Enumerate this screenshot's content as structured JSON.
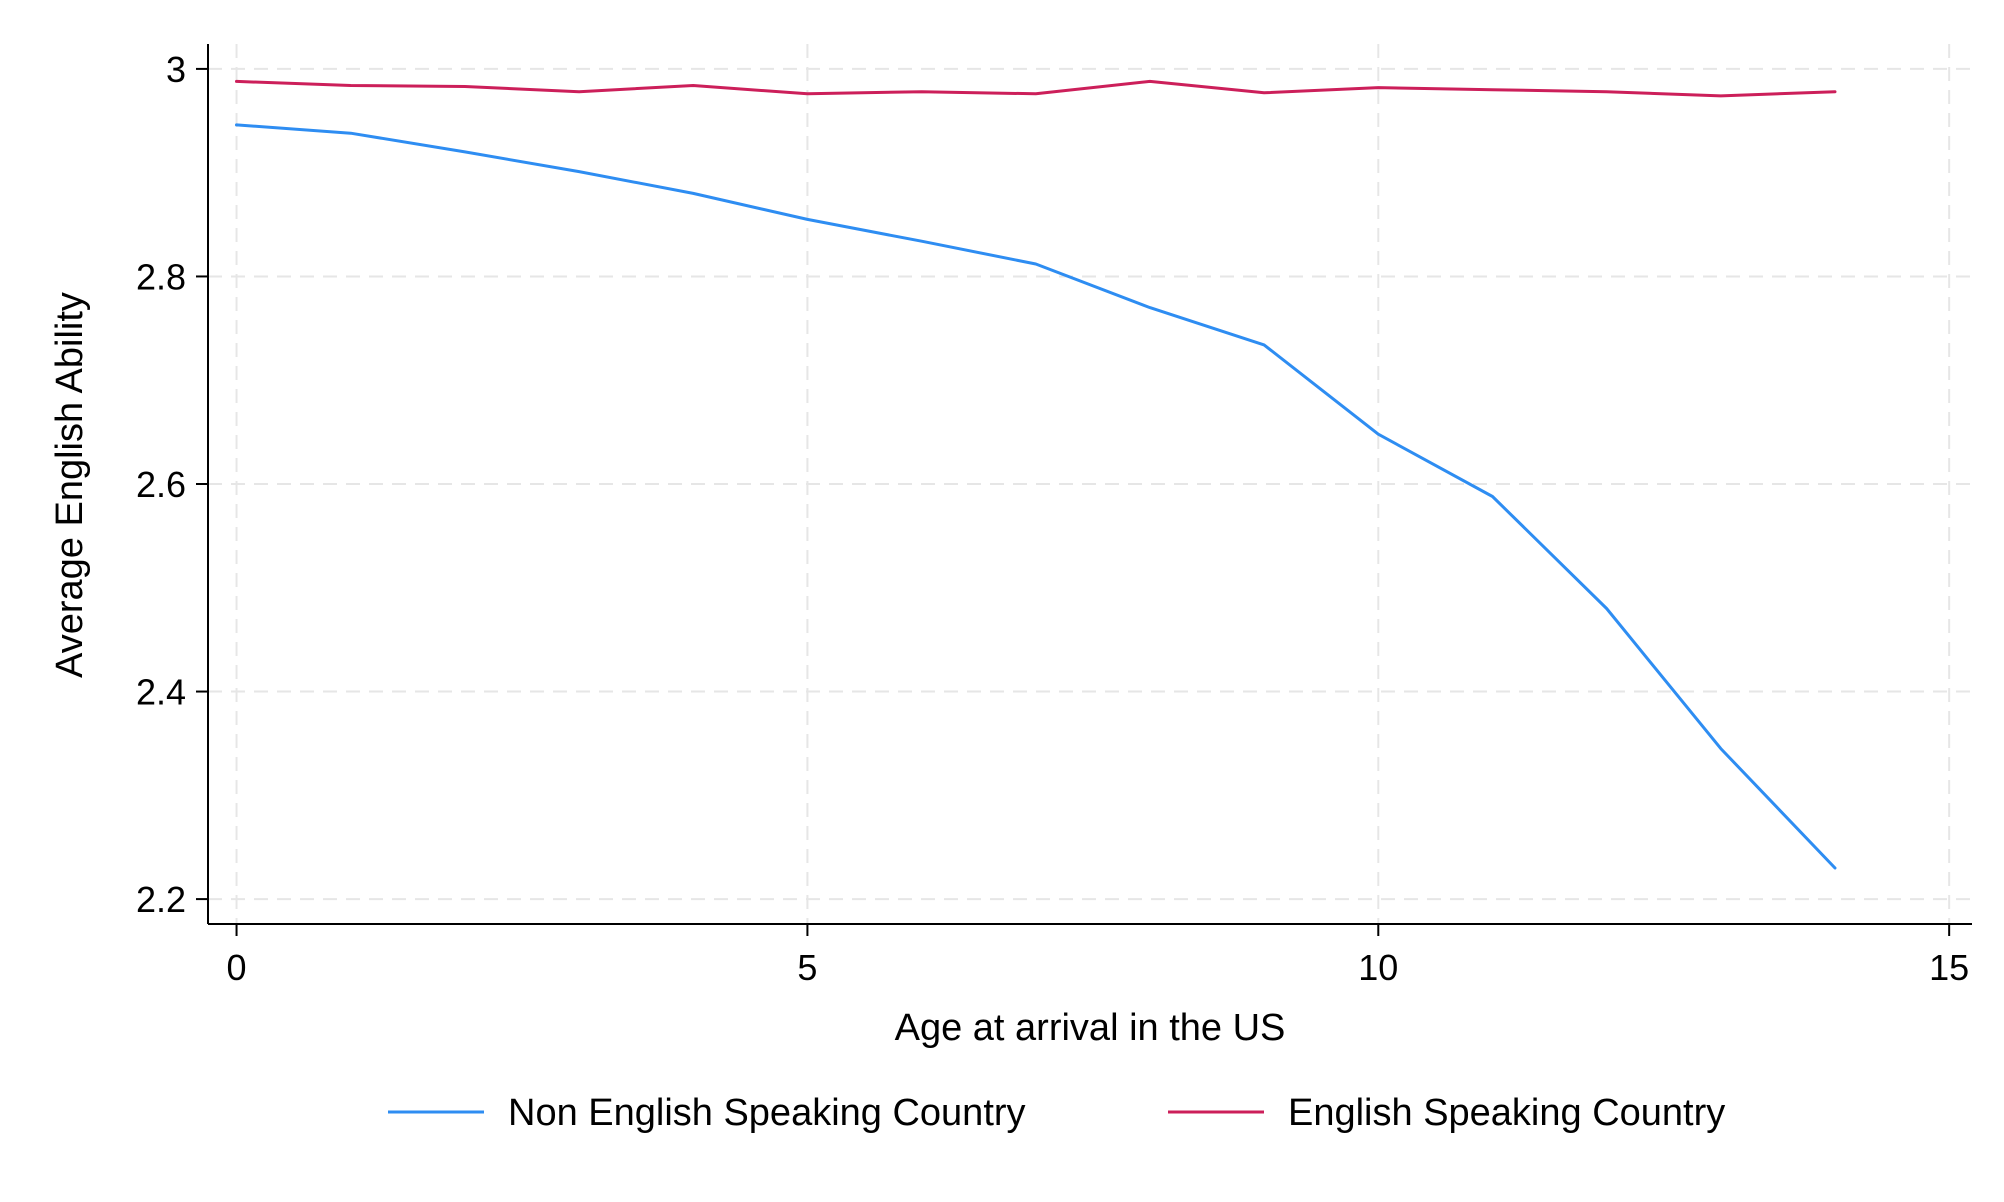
{
  "chart_data": {
    "type": "line",
    "title": "",
    "xlabel": "Age at arrival in the US",
    "ylabel": "Average English Ability",
    "xlim": [
      -0.25,
      15.2
    ],
    "ylim": [
      2.176,
      3.024
    ],
    "xticks": [
      0,
      5,
      10,
      15
    ],
    "yticks": [
      2.2,
      2.4,
      2.6,
      2.8,
      3
    ],
    "grid": true,
    "legend_position": "bottom",
    "x": [
      0,
      1,
      2,
      3,
      4,
      5,
      6,
      7,
      8,
      9,
      10,
      11,
      12,
      13,
      14
    ],
    "series": [
      {
        "name": "Non English Speaking Country",
        "color": "#2e8df2",
        "values": [
          2.946,
          2.938,
          2.92,
          2.901,
          2.88,
          2.855,
          2.834,
          2.812,
          2.77,
          2.734,
          2.648,
          2.588,
          2.48,
          2.345,
          2.23
        ]
      },
      {
        "name": "English Speaking Country",
        "color": "#cc1f5a",
        "values": [
          2.988,
          2.984,
          2.983,
          2.978,
          2.984,
          2.976,
          2.978,
          2.976,
          2.988,
          2.977,
          2.982,
          2.98,
          2.978,
          2.974,
          2.978
        ]
      }
    ]
  }
}
